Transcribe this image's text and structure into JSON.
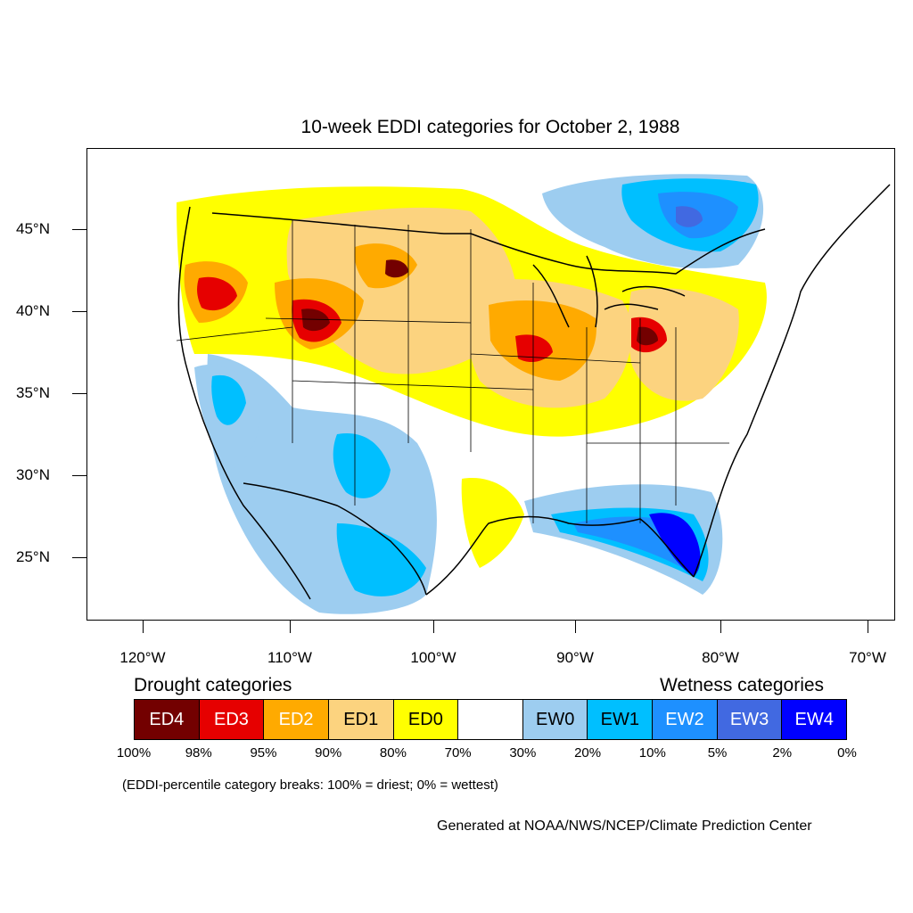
{
  "title": "10-week EDDI categories for October 2, 1988",
  "map": {
    "lat_labels": [
      "45°N",
      "40°N",
      "35°N",
      "30°N",
      "25°N"
    ],
    "lon_labels": [
      "120°W",
      "110°W",
      "100°W",
      "90°W",
      "80°W",
      "70°W"
    ]
  },
  "legend": {
    "drought_heading": "Drought categories",
    "wetness_heading": "Wetness categories",
    "categories": [
      {
        "label": "ED4",
        "color": "#730000",
        "text_color": "#ffffff"
      },
      {
        "label": "ED3",
        "color": "#e60000",
        "text_color": "#ffffff"
      },
      {
        "label": "ED2",
        "color": "#ffaa00",
        "text_color": "#ffffff"
      },
      {
        "label": "ED1",
        "color": "#fcd37f",
        "text_color": "#000000"
      },
      {
        "label": "ED0",
        "color": "#ffff00",
        "text_color": "#000000"
      },
      {
        "label": "",
        "color": "#ffffff",
        "text_color": "#000000"
      },
      {
        "label": "EW0",
        "color": "#9dcdf0",
        "text_color": "#000000"
      },
      {
        "label": "EW1",
        "color": "#00bfff",
        "text_color": "#000000"
      },
      {
        "label": "EW2",
        "color": "#1e90ff",
        "text_color": "#ffffff"
      },
      {
        "label": "EW3",
        "color": "#4169e1",
        "text_color": "#ffffff"
      },
      {
        "label": "EW4",
        "color": "#0000ff",
        "text_color": "#ffffff"
      }
    ],
    "percentiles": [
      "100%",
      "98%",
      "95%",
      "90%",
      "80%",
      "70%",
      "30%",
      "20%",
      "10%",
      "5%",
      "2%",
      "0%"
    ]
  },
  "note": "(EDDI-percentile category breaks: 100% = driest; 0% = wettest)",
  "credit": "Generated at NOAA/NWS/NCEP/Climate Prediction Center"
}
